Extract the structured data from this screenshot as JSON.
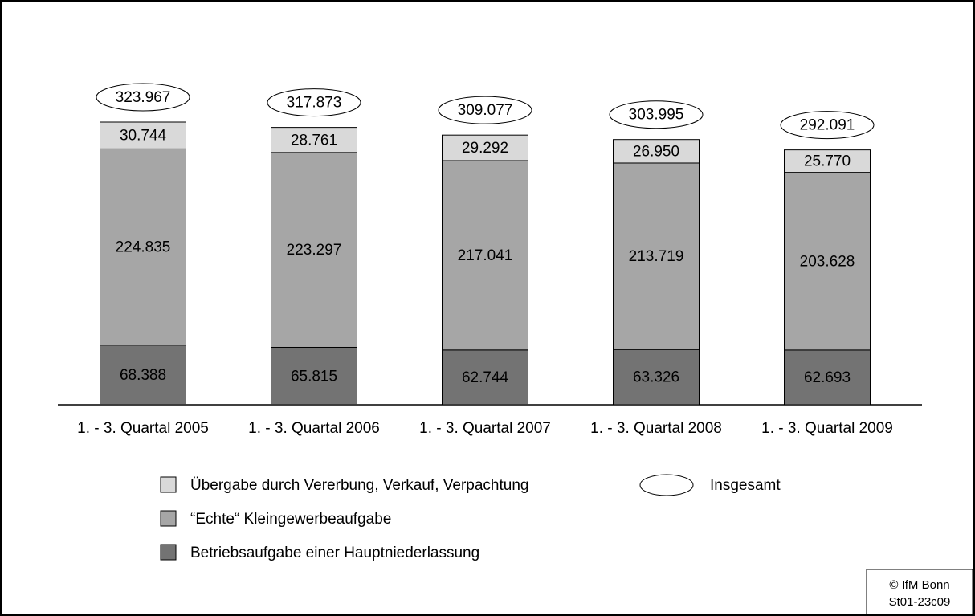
{
  "chart_data": {
    "type": "stacked-bar",
    "categories": [
      "1. - 3. Quartal 2005",
      "1. - 3. Quartal 2006",
      "1. - 3. Quartal 2007",
      "1. - 3. Quartal 2008",
      "1. - 3. Quartal 2009"
    ],
    "series": [
      {
        "name": "Betriebsaufgabe einer Hauptniederlassung",
        "color": "#737373",
        "values": [
          68388,
          65815,
          62744,
          63326,
          62693
        ],
        "value_labels": [
          "68.388",
          "65.815",
          "62.744",
          "63.326",
          "62.693"
        ]
      },
      {
        "name": "“Echte“ Kleingewerbeaufgabe",
        "color": "#a6a6a6",
        "values": [
          224835,
          223297,
          217041,
          213719,
          203628
        ],
        "value_labels": [
          "224.835",
          "223.297",
          "217.041",
          "213.719",
          "203.628"
        ]
      },
      {
        "name": "Übergabe durch Vererbung, Verkauf, Verpachtung",
        "color": "#d9d9d9",
        "values": [
          30744,
          28761,
          29292,
          26950,
          25770
        ],
        "value_labels": [
          "30.744",
          "28.761",
          "29.292",
          "26.950",
          "25.770"
        ]
      }
    ],
    "totals": {
      "name": "Insgesamt",
      "values": [
        323967,
        317873,
        309077,
        303995,
        292091
      ],
      "value_labels": [
        "323.967",
        "317.873",
        "309.077",
        "303.995",
        "292.091"
      ]
    },
    "source": [
      "© IfM Bonn",
      "St01-23c09"
    ]
  }
}
